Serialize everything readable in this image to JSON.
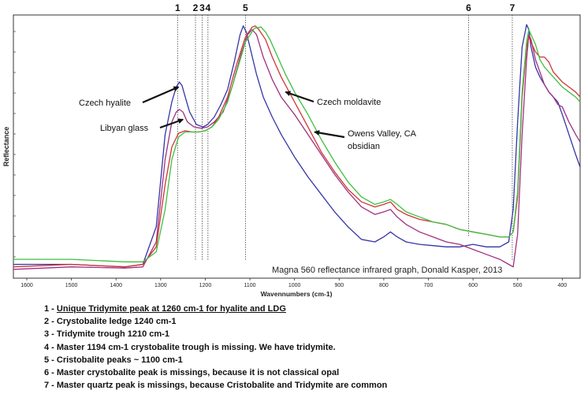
{
  "chart_data": {
    "type": "line",
    "caption": "Magna 560 reflectance infrared graph, Donald Kasper, 2013",
    "xlabel": "Wavennumbers (cm-1)",
    "ylabel": "Reflectance",
    "xlim": [
      1630,
      360
    ],
    "x_reversed": true,
    "ylim": [
      0,
      1
    ],
    "y_units": "relative (no printed scale)",
    "x_ticks": [
      1600,
      1500,
      1400,
      1300,
      1200,
      1100,
      1000,
      900,
      800,
      700,
      600,
      500,
      400
    ],
    "x_tick_labels": [
      "1600",
      "1500",
      "1400",
      "1300",
      "1200",
      "1100",
      "1000",
      "900",
      "800",
      "700",
      "600",
      "500",
      "400"
    ],
    "series": [
      {
        "color": "#3535a8",
        "x": [
          1630,
          1500,
          1380,
          1340,
          1310,
          1290,
          1275,
          1265,
          1258,
          1252,
          1245,
          1235,
          1220,
          1205,
          1195,
          1180,
          1165,
          1150,
          1135,
          1122,
          1115,
          1108,
          1100,
          1085,
          1070,
          1050,
          1030,
          1000,
          970,
          940,
          910,
          880,
          850,
          820,
          800,
          785,
          770,
          750,
          720,
          690,
          660,
          630,
          600,
          570,
          540,
          520,
          510,
          500,
          490,
          480,
          475,
          470,
          460,
          450,
          440,
          430,
          420,
          410,
          400,
          385,
          370,
          360
        ],
        "y": [
          0.03,
          0.03,
          0.02,
          0.03,
          0.18,
          0.55,
          0.68,
          0.74,
          0.76,
          0.745,
          0.7,
          0.64,
          0.59,
          0.58,
          0.59,
          0.62,
          0.67,
          0.73,
          0.84,
          0.95,
          0.985,
          0.96,
          0.9,
          0.79,
          0.7,
          0.62,
          0.55,
          0.46,
          0.38,
          0.31,
          0.24,
          0.18,
          0.13,
          0.12,
          0.14,
          0.16,
          0.14,
          0.12,
          0.11,
          0.105,
          0.1,
          0.1,
          0.11,
          0.1,
          0.1,
          0.12,
          0.25,
          0.6,
          0.9,
          0.99,
          0.97,
          0.9,
          0.82,
          0.78,
          0.75,
          0.72,
          0.7,
          0.68,
          0.63,
          0.55,
          0.47,
          0.42
        ]
      },
      {
        "color": "#a03080",
        "x": [
          1630,
          1500,
          1380,
          1340,
          1310,
          1290,
          1275,
          1265,
          1258,
          1250,
          1240,
          1225,
          1210,
          1195,
          1180,
          1160,
          1140,
          1120,
          1105,
          1095,
          1085,
          1070,
          1050,
          1030,
          1000,
          970,
          940,
          910,
          880,
          850,
          820,
          800,
          785,
          770,
          750,
          720,
          690,
          660,
          630,
          600,
          570,
          540,
          520,
          510,
          500,
          490,
          480,
          475,
          470,
          460,
          450,
          440,
          430,
          420,
          410,
          400,
          385,
          370,
          360
        ],
        "y": [
          0.01,
          0.02,
          0.015,
          0.02,
          0.12,
          0.45,
          0.6,
          0.64,
          0.65,
          0.64,
          0.6,
          0.58,
          0.575,
          0.58,
          0.6,
          0.64,
          0.74,
          0.87,
          0.95,
          0.97,
          0.95,
          0.86,
          0.77,
          0.7,
          0.63,
          0.55,
          0.47,
          0.39,
          0.32,
          0.26,
          0.23,
          0.24,
          0.25,
          0.22,
          0.19,
          0.16,
          0.14,
          0.12,
          0.11,
          0.09,
          0.07,
          0.05,
          0.03,
          0.02,
          0.15,
          0.55,
          0.85,
          0.95,
          0.93,
          0.85,
          0.8,
          0.75,
          0.72,
          0.7,
          0.67,
          0.66,
          0.6,
          0.55,
          0.52
        ]
      },
      {
        "color": "#d03535",
        "x": [
          1630,
          1500,
          1380,
          1340,
          1310,
          1290,
          1275,
          1260,
          1245,
          1230,
          1215,
          1200,
          1185,
          1170,
          1150,
          1130,
          1110,
          1095,
          1088,
          1080,
          1065,
          1050,
          1030,
          1000,
          970,
          940,
          910,
          880,
          850,
          820,
          800,
          785,
          770,
          750,
          720,
          690,
          660,
          630,
          600,
          570,
          540,
          520,
          510,
          500,
          490,
          480,
          475,
          470,
          460,
          450,
          440,
          430,
          420,
          410,
          400,
          385,
          370,
          360
        ],
        "y": [
          0.02,
          0.03,
          0.02,
          0.03,
          0.1,
          0.35,
          0.5,
          0.555,
          0.565,
          0.56,
          0.56,
          0.565,
          0.58,
          0.62,
          0.7,
          0.83,
          0.94,
          0.98,
          0.985,
          0.97,
          0.93,
          0.86,
          0.78,
          0.68,
          0.58,
          0.48,
          0.4,
          0.33,
          0.28,
          0.26,
          0.27,
          0.28,
          0.25,
          0.23,
          0.21,
          0.2,
          0.19,
          0.17,
          0.16,
          0.15,
          0.14,
          0.14,
          0.16,
          0.3,
          0.7,
          0.9,
          0.94,
          0.92,
          0.88,
          0.86,
          0.86,
          0.84,
          0.8,
          0.78,
          0.76,
          0.74,
          0.72,
          0.7
        ]
      },
      {
        "color": "#3fbf3f",
        "x": [
          1630,
          1500,
          1380,
          1340,
          1310,
          1290,
          1275,
          1260,
          1245,
          1230,
          1215,
          1200,
          1185,
          1170,
          1150,
          1130,
          1110,
          1090,
          1075,
          1065,
          1055,
          1040,
          1020,
          1000,
          970,
          940,
          910,
          880,
          850,
          820,
          800,
          785,
          770,
          750,
          720,
          690,
          660,
          630,
          600,
          570,
          540,
          520,
          510,
          500,
          490,
          480,
          475,
          470,
          460,
          450,
          440,
          430,
          420,
          410,
          400,
          385,
          370,
          360
        ],
        "y": [
          0.05,
          0.05,
          0.04,
          0.04,
          0.08,
          0.25,
          0.45,
          0.54,
          0.56,
          0.56,
          0.56,
          0.565,
          0.58,
          0.61,
          0.68,
          0.8,
          0.92,
          0.975,
          0.98,
          0.96,
          0.93,
          0.87,
          0.79,
          0.72,
          0.63,
          0.53,
          0.44,
          0.36,
          0.3,
          0.27,
          0.28,
          0.29,
          0.27,
          0.24,
          0.22,
          0.2,
          0.19,
          0.17,
          0.16,
          0.15,
          0.14,
          0.14,
          0.16,
          0.32,
          0.72,
          0.92,
          0.97,
          0.95,
          0.91,
          0.85,
          0.82,
          0.8,
          0.78,
          0.76,
          0.74,
          0.72,
          0.7,
          0.68
        ]
      }
    ],
    "markers": [
      {
        "label": "1",
        "x": 1262
      },
      {
        "label": "2",
        "x": 1222
      },
      {
        "label": "3",
        "x": 1207
      },
      {
        "label": "4",
        "x": 1194
      },
      {
        "label": "5",
        "x": 1110
      },
      {
        "label": "6",
        "x": 610
      },
      {
        "label": "7",
        "x": 512
      }
    ],
    "annotations": [
      {
        "text": "Czech hyalite",
        "arrow_to": {
          "x": 1260,
          "y": 0.74
        }
      },
      {
        "text": "Libyan glass",
        "arrow_to": {
          "x": 1250,
          "y": 0.61
        }
      },
      {
        "text": "Czech moldavite",
        "arrow_to": {
          "x": 1020,
          "y": 0.72
        }
      },
      {
        "text": "Owens Valley, CA",
        "text2": "obsidian",
        "arrow_to": {
          "x": 955,
          "y": 0.56
        }
      }
    ]
  },
  "notes": [
    {
      "text": "1 - Unique Tridymite peak at 1260 cm-1 for hyalite and LDG",
      "underline": true
    },
    {
      "text": "2 - Crystobalite ledge 1240 cm-1"
    },
    {
      "text": "3 - Tridymite trough 1210 cm-1"
    },
    {
      "text": "4 - Master 1194 cm-1 crystobalite trough is missing. We have tridymite."
    },
    {
      "text": "5 - Cristobalite peaks ~ 1100 cm-1"
    },
    {
      "text": "6 - Master crystobalite peak is missings, because it is not classical opal"
    },
    {
      "text": "7 - Master quartz peak is missings, because Cristobalite and Tridymite are common"
    }
  ]
}
